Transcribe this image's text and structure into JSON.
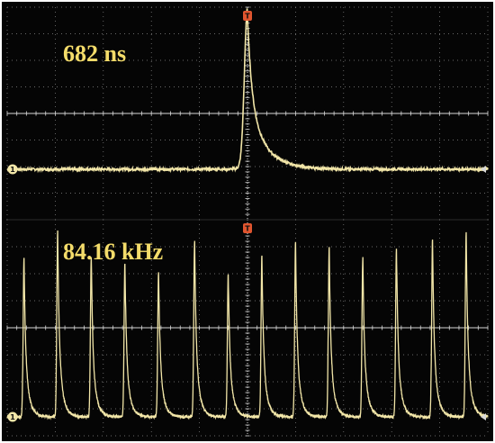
{
  "colors": {
    "screen": "#050505",
    "frame": "#ffffff",
    "grid": "#8a8a8a",
    "crosshair": "#d8d8d8",
    "trace": "#f2e6a8",
    "label": "#f4dc6a",
    "marker": "#e0552f",
    "ground_marker": "#f2e6a8"
  },
  "chart_data": [
    {
      "type": "line",
      "title": "",
      "annotation": "682 ns",
      "xlabel": "",
      "ylabel": "",
      "grid": true,
      "trigger_marker": "T",
      "channel_marker": "1",
      "description_note": "single pulse, sharp rise and exponential decay",
      "peak_x_div": 0.0,
      "x_range_div": [
        -5,
        5
      ],
      "y_range_div": [
        -4,
        4
      ],
      "baseline_div": -2.1,
      "peak_div": 3.6
    },
    {
      "type": "line",
      "title": "",
      "annotation": "84.16 kHz",
      "xlabel": "",
      "ylabel": "",
      "grid": true,
      "trigger_marker": "T",
      "channel_marker": "1",
      "x_range_div": [
        -5,
        5
      ],
      "y_range_div": [
        -4,
        4
      ],
      "baseline_div": -3.3,
      "pulse_positions_div": [
        -4.65,
        -3.95,
        -3.25,
        -2.55,
        -1.85,
        -1.1,
        -0.4,
        0.3,
        1.0,
        1.7,
        2.4,
        3.1,
        3.85,
        4.55
      ],
      "pulse_heights_div": [
        2.6,
        3.6,
        2.6,
        2.4,
        2.1,
        3.2,
        2.0,
        2.7,
        3.2,
        3.0,
        2.6,
        2.9,
        3.3,
        3.5
      ]
    }
  ]
}
